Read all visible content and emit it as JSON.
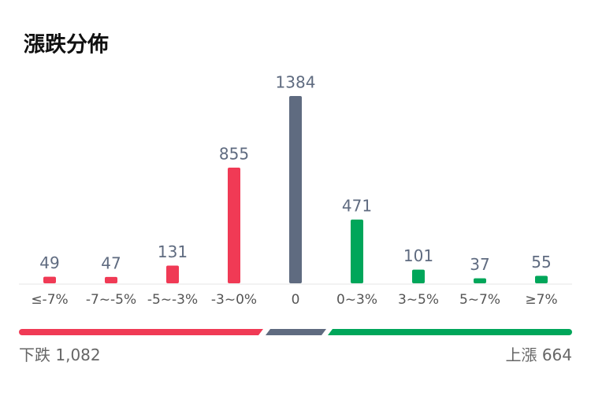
{
  "chart_data": {
    "type": "bar",
    "title": "漲跌分佈",
    "categories": [
      "≤-7%",
      "-7~-5%",
      "-5~-3%",
      "-3~0%",
      "0",
      "0~3%",
      "3~5%",
      "5~7%",
      "≥7%"
    ],
    "values": [
      49,
      47,
      131,
      855,
      1384,
      471,
      101,
      37,
      55
    ],
    "colors": [
      "#f03a55",
      "#f03a55",
      "#f03a55",
      "#f03a55",
      "#5f6b80",
      "#00a65a",
      "#00a65a",
      "#00a65a",
      "#00a65a"
    ],
    "summary": {
      "labels": [
        "下跌",
        "上漲"
      ],
      "values": [
        1082,
        664
      ],
      "value_labels": [
        "1,082",
        "664"
      ]
    }
  }
}
